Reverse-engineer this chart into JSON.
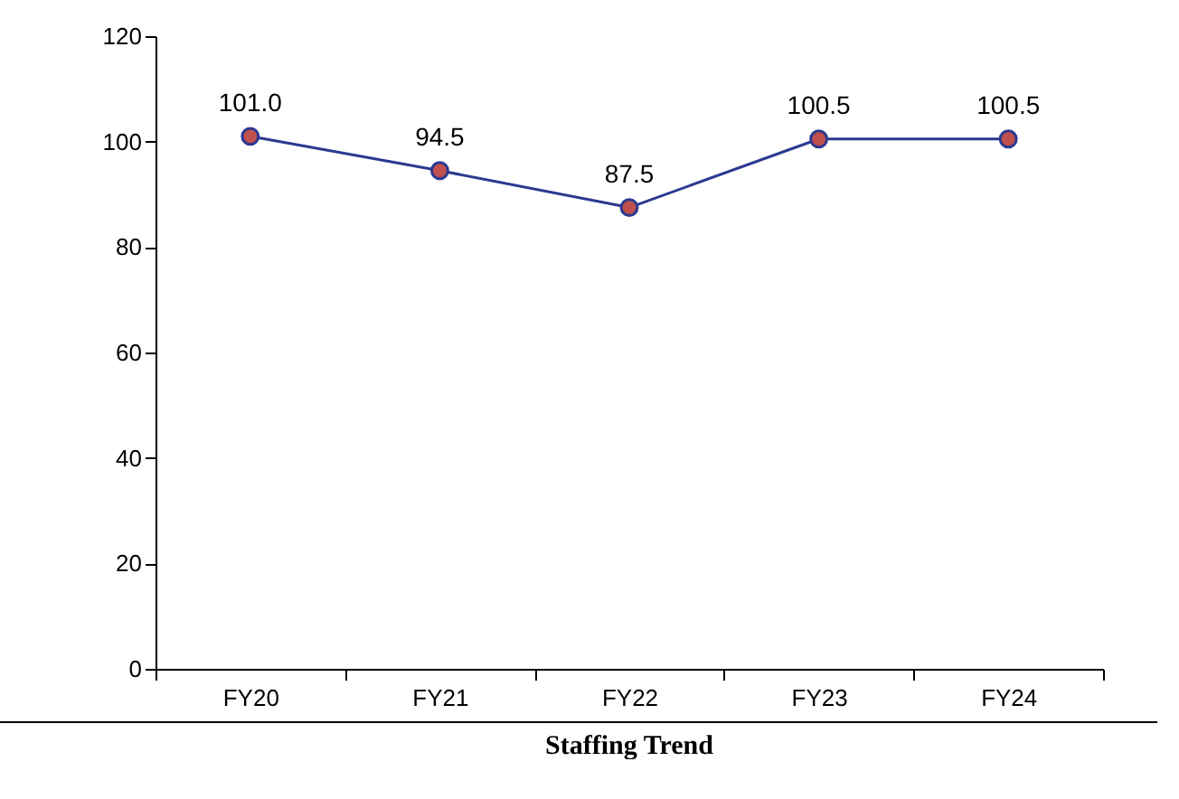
{
  "chart_data": {
    "type": "line",
    "title": "Staffing Trend",
    "categories": [
      "FY20",
      "FY21",
      "FY22",
      "FY23",
      "FY24"
    ],
    "values": [
      101.0,
      94.5,
      87.5,
      100.5,
      100.5
    ],
    "value_labels": [
      "101.0",
      "94.5",
      "87.5",
      "100.5",
      "100.5"
    ],
    "color": "#2b3990",
    "colors": [
      "#c0504d",
      "#c0504d",
      "#c0504d",
      "#c0504d",
      "#c0504d"
    ],
    "ylim": [
      0,
      120
    ],
    "yticks": [
      0,
      20,
      40,
      60,
      80,
      100,
      120
    ],
    "marker": "circle",
    "line_style": "solid",
    "grid": false
  }
}
